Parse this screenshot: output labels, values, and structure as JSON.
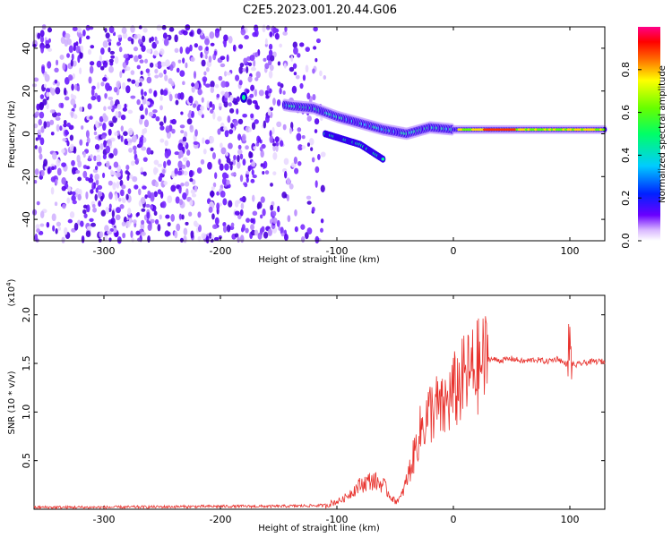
{
  "title": "C2E5.2023.001.20.44.G06",
  "colors": {
    "snr_line": "#e8322d",
    "colormap": [
      "#ffffff",
      "#e6d2ff",
      "#b47cff",
      "#7b1fff",
      "#3a00e6",
      "#0033ff",
      "#00c8ff",
      "#00ff88",
      "#66ff00",
      "#ffff00",
      "#ff8800",
      "#ff0000",
      "#ff0088"
    ]
  },
  "chart_data": [
    {
      "type": "heatmap",
      "name_ref": "spectrogram",
      "xlabel": "Height of straight line (km)",
      "ylabel": "Frequency (Hz)",
      "xlim": [
        -360,
        130
      ],
      "ylim": [
        -50,
        50
      ],
      "xticks": [
        -300,
        -200,
        -100,
        0,
        100
      ],
      "yticks": [
        -40,
        -20,
        0,
        20,
        40
      ],
      "colorbar": {
        "label": "Normalized spectral amplitude",
        "range": [
          0.0,
          1.0
        ],
        "ticks": [
          "0.0",
          "0.2",
          "0.4",
          "0.6",
          "0.8"
        ]
      },
      "noise_region_x": [
        -360,
        -110
      ],
      "signal_track": [
        {
          "x": -180,
          "y": 17
        },
        {
          "x": -140,
          "y": 13
        },
        {
          "x": -120,
          "y": 12
        },
        {
          "x": -100,
          "y": 8
        },
        {
          "x": -80,
          "y": 5
        },
        {
          "x": -60,
          "y": 2
        },
        {
          "x": -40,
          "y": 0
        },
        {
          "x": -20,
          "y": 3
        },
        {
          "x": 0,
          "y": 2
        },
        {
          "x": 50,
          "y": 2
        },
        {
          "x": 100,
          "y": 2
        },
        {
          "x": 130,
          "y": 2
        }
      ],
      "secondary_branch": [
        {
          "x": -110,
          "y": 0
        },
        {
          "x": -80,
          "y": -5
        },
        {
          "x": -60,
          "y": -12
        }
      ]
    },
    {
      "type": "line",
      "xlabel": "Height of straight line (km)",
      "ylabel": "SNR (10 * v/v)",
      "y_multiplier": "(x10",
      "y_multiplier_exp": "4",
      "y_multiplier_close": ")",
      "xlim": [
        -360,
        130
      ],
      "ylim": [
        0,
        2.2
      ],
      "xticks": [
        -300,
        -200,
        -100,
        0,
        100
      ],
      "yticks": [
        0.5,
        1.0,
        1.5,
        2.0
      ],
      "ytick_labels": [
        "0.5",
        "1.0",
        "1.5",
        "2.0"
      ],
      "series": [
        {
          "x": [
            -360,
            -300,
            -200,
            -150,
            -110,
            -95,
            -80,
            -70,
            -60,
            -55,
            -50,
            -45,
            -40,
            -35,
            -30,
            -25,
            -20,
            -15,
            -10,
            -5,
            0,
            10,
            20,
            30,
            40,
            50,
            60,
            70,
            80,
            90,
            95,
            100,
            105,
            110,
            120,
            130
          ],
          "y": [
            0.02,
            0.02,
            0.03,
            0.03,
            0.04,
            0.1,
            0.25,
            0.3,
            0.25,
            0.15,
            0.08,
            0.12,
            0.3,
            0.5,
            0.75,
            0.9,
            1.0,
            1.05,
            1.0,
            1.1,
            1.2,
            1.35,
            1.45,
            1.55,
            1.53,
            1.55,
            1.52,
            1.54,
            1.52,
            1.55,
            1.5,
            1.5,
            1.48,
            1.5,
            1.52,
            1.52
          ]
        }
      ]
    }
  ]
}
